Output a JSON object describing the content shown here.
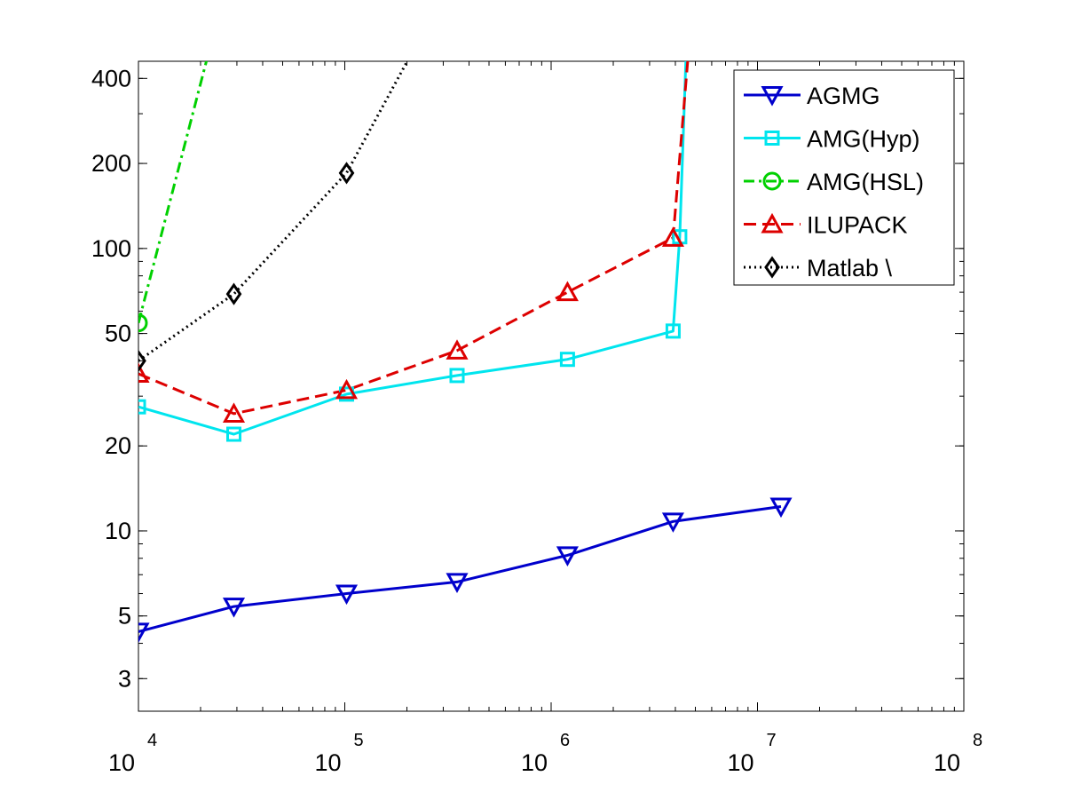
{
  "chart_data": {
    "type": "line",
    "title": "",
    "xlabel": "",
    "ylabel": "",
    "xscale": "log",
    "yscale": "log",
    "xlim": [
      10000,
      100000000
    ],
    "ylim": [
      2.3,
      460
    ],
    "grid": false,
    "legend_position": "top-right",
    "x_ticks": [
      {
        "base": "10",
        "exp": "4",
        "value": 10000
      },
      {
        "base": "10",
        "exp": "5",
        "value": 100000
      },
      {
        "base": "10",
        "exp": "6",
        "value": 1000000
      },
      {
        "base": "10",
        "exp": "7",
        "value": 10000000
      },
      {
        "base": "10",
        "exp": "8",
        "value": 100000000
      }
    ],
    "y_ticks": [
      {
        "label": "3",
        "value": 3
      },
      {
        "label": "5",
        "value": 5
      },
      {
        "label": "10",
        "value": 10
      },
      {
        "label": "20",
        "value": 20
      },
      {
        "label": "50",
        "value": 50
      },
      {
        "label": "100",
        "value": 100
      },
      {
        "label": "200",
        "value": 200
      },
      {
        "label": "400",
        "value": 400
      }
    ],
    "series": [
      {
        "name": "AGMG",
        "color": "#0000cc",
        "dash": "solid",
        "marker": "triangle-down",
        "x": [
          10000,
          29000,
          102000,
          350000,
          1200000,
          3900000,
          13000000
        ],
        "y": [
          4.4,
          5.4,
          6.0,
          6.6,
          8.2,
          10.8,
          12.2
        ]
      },
      {
        "name": "AMG(Hyp)",
        "color": "#00e5ee",
        "dash": "solid",
        "marker": "square",
        "x": [
          10000,
          29000,
          102000,
          350000,
          1200000,
          3900000,
          4200000,
          4500000
        ],
        "y": [
          27.5,
          22.0,
          30.5,
          35.5,
          40.5,
          51.0,
          110.0,
          470.0
        ]
      },
      {
        "name": "AMG(HSL)",
        "color": "#00d000",
        "dash": "dashdot",
        "marker": "circle",
        "x": [
          10000,
          21500
        ],
        "y": [
          54.5,
          470.0
        ]
      },
      {
        "name": "ILUPACK",
        "color": "#dd0000",
        "dash": "dashed",
        "marker": "triangle-up",
        "x": [
          10000,
          29000,
          102000,
          350000,
          1200000,
          3900000,
          4600000
        ],
        "y": [
          36.0,
          26.0,
          31.5,
          43.5,
          70.0,
          109.0,
          470.0
        ]
      },
      {
        "name": "Matlab \\",
        "color": "#000000",
        "dash": "dotted",
        "marker": "diamond",
        "x": [
          10000,
          29000,
          102000,
          204000
        ],
        "y": [
          40.0,
          69.0,
          185.0,
          470.0
        ]
      }
    ]
  }
}
